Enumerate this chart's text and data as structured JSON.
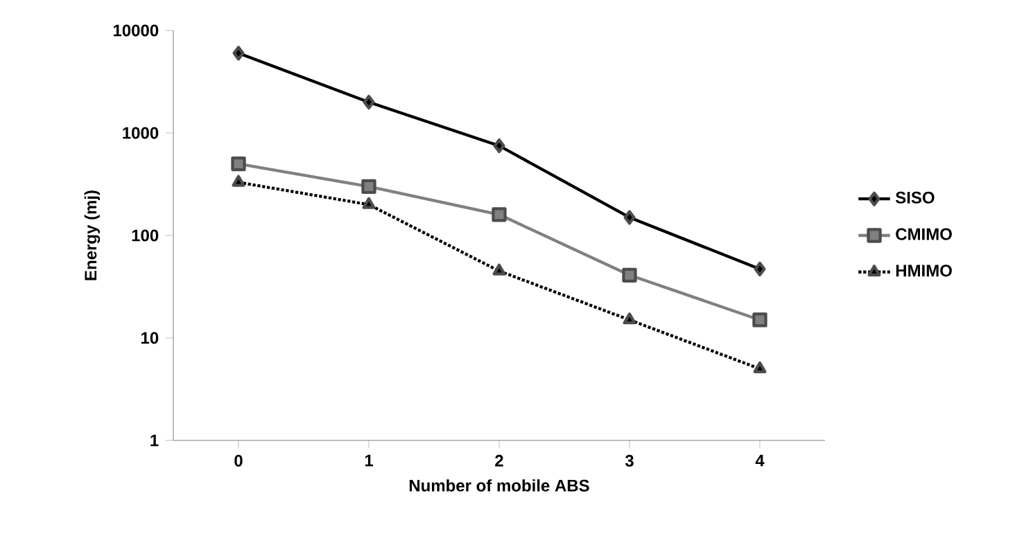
{
  "chart_data": {
    "type": "line",
    "xlabel": "Number of mobile ABS",
    "ylabel": "Energy (mj)",
    "categories": [
      "0",
      "1",
      "2",
      "3",
      "4"
    ],
    "series": [
      {
        "name": "SISO",
        "color": "#000000",
        "marker": "diamond",
        "line_style": "solid",
        "values": [
          6000,
          2000,
          750,
          150,
          47
        ]
      },
      {
        "name": "CMIMO",
        "color": "#808080",
        "marker": "square",
        "line_style": "solid",
        "values": [
          500,
          300,
          160,
          41,
          15
        ]
      },
      {
        "name": "HMIMO",
        "color": "#000000",
        "marker": "triangle",
        "line_style": "dotted",
        "values": [
          330,
          200,
          45,
          15,
          5
        ]
      }
    ],
    "log": "y",
    "ylim": [
      1,
      10000
    ],
    "yticks": [
      1,
      10,
      100,
      1000,
      10000
    ],
    "grid": false,
    "legend": "right"
  }
}
